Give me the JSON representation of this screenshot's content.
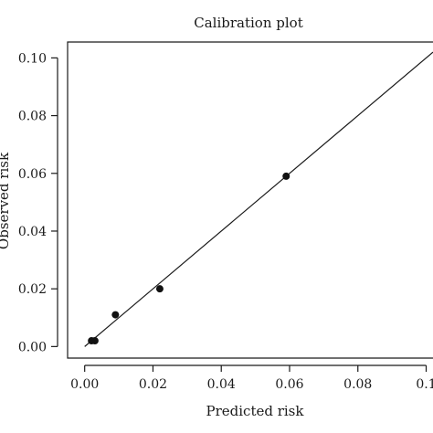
{
  "chart_data": {
    "type": "scatter",
    "title": "Calibration plot",
    "xlabel": "Predicted risk",
    "ylabel": "Observed risk",
    "xlim": [
      -0.005,
      0.102
    ],
    "ylim": [
      -0.004,
      0.1055
    ],
    "x_ticks": [
      0.0,
      0.02,
      0.04,
      0.06,
      0.08,
      0.1
    ],
    "x_tick_labels": [
      "0.00",
      "0.02",
      "0.04",
      "0.06",
      "0.08",
      "0.1"
    ],
    "y_ticks": [
      0.0,
      0.02,
      0.04,
      0.06,
      0.08,
      0.1
    ],
    "y_tick_labels": [
      "0.00",
      "0.02",
      "0.04",
      "0.06",
      "0.08",
      "0.10"
    ],
    "grid": false,
    "legend": "none",
    "reference_line": {
      "from": [
        0.0,
        0.0
      ],
      "to": [
        0.102,
        0.102
      ],
      "label": ""
    },
    "series": [
      {
        "points": [
          {
            "x": 0.002,
            "y": 0.002
          },
          {
            "x": 0.003,
            "y": 0.002
          },
          {
            "x": 0.009,
            "y": 0.011
          },
          {
            "x": 0.022,
            "y": 0.02
          },
          {
            "x": 0.059,
            "y": 0.059
          }
        ],
        "color": "#111111"
      }
    ]
  }
}
